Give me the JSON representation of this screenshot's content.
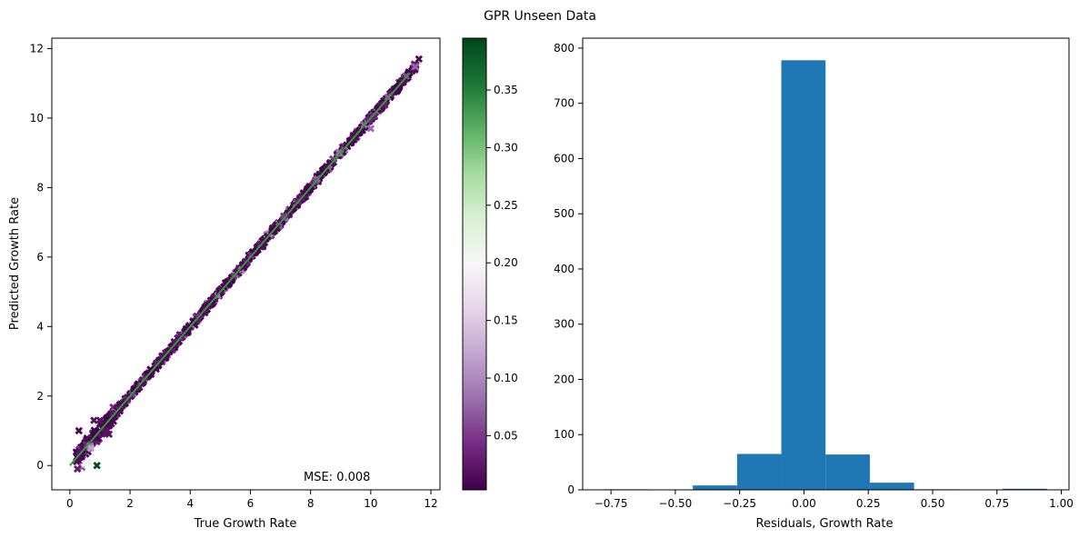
{
  "figure": {
    "suptitle": "GPR Unseen Data"
  },
  "chart_data": [
    {
      "type": "scatter",
      "xlabel": "True Growth Rate",
      "ylabel": "Predicted Growth Rate",
      "xlim": [
        -0.6,
        12.3
      ],
      "ylim": [
        -0.7,
        12.3
      ],
      "xticks": [
        0,
        2,
        4,
        6,
        8,
        10,
        12
      ],
      "yticks": [
        0,
        2,
        4,
        6,
        8,
        10,
        12
      ],
      "annotation": "MSE: 0.008",
      "marker": "X",
      "identity_line": {
        "from": [
          0,
          0
        ],
        "to": [
          11.3,
          11.3
        ],
        "color": "#2ca02c"
      },
      "colorbar": {
        "cmap": "PRGn",
        "range": [
          0.003,
          0.395
        ],
        "ticks": [
          0.05,
          0.1,
          0.15,
          0.2,
          0.25,
          0.3,
          0.35
        ],
        "tick_labels": [
          "0.05",
          "0.10",
          "0.15",
          "0.20",
          "0.25",
          "0.30",
          "0.35"
        ]
      },
      "trend": {
        "x_range": [
          0.2,
          11.5
        ],
        "typical_offset": 0.0,
        "typical_std": 0.04
      },
      "points": [
        {
          "x": 0.3,
          "y": 1.0,
          "c": 0.01
        },
        {
          "x": 0.9,
          "y": 0.0,
          "c": 0.39
        },
        {
          "x": 11.6,
          "y": 11.7,
          "c": 0.01
        },
        {
          "x": 10.0,
          "y": 9.7,
          "c": 0.08
        },
        {
          "x": 0.4,
          "y": -0.05,
          "c": 0.07
        },
        {
          "x": 0.6,
          "y": 0.1,
          "c": 0.18
        },
        {
          "x": 0.5,
          "y": 0.05,
          "c": 0.2
        },
        {
          "x": 0.7,
          "y": 0.5,
          "c": 0.12
        },
        {
          "x": 0.8,
          "y": 1.3,
          "c": 0.02
        },
        {
          "x": 1.0,
          "y": 1.3,
          "c": 0.02
        },
        {
          "x": 1.2,
          "y": 1.0,
          "c": 0.02
        },
        {
          "x": 1.3,
          "y": 0.9,
          "c": 0.02
        },
        {
          "x": 0.3,
          "y": 0.4,
          "c": 0.02
        },
        {
          "x": 0.25,
          "y": -0.1,
          "c": 0.03
        },
        {
          "x": 1.4,
          "y": 1.5,
          "c": 0.02
        }
      ]
    },
    {
      "type": "bar",
      "xlabel": "Residuals, Growth Rate",
      "ylabel": "",
      "xlim": [
        -0.86,
        1.03
      ],
      "ylim": [
        0,
        818
      ],
      "xticks": [
        -0.75,
        -0.5,
        -0.25,
        0.0,
        0.25,
        0.5,
        0.75,
        1.0
      ],
      "xtick_labels": [
        "−0.75",
        "−0.50",
        "−0.25",
        "0.00",
        "0.25",
        "0.50",
        "0.75",
        "1.00"
      ],
      "yticks": [
        0,
        100,
        200,
        300,
        400,
        500,
        600,
        700,
        800
      ],
      "bar_color": "#1f77b4",
      "bins": [
        {
          "x0": -0.776,
          "x1": -0.604,
          "count": 1
        },
        {
          "x0": -0.604,
          "x1": -0.432,
          "count": 0
        },
        {
          "x0": -0.432,
          "x1": -0.26,
          "count": 8
        },
        {
          "x0": -0.26,
          "x1": -0.088,
          "count": 65
        },
        {
          "x0": -0.088,
          "x1": 0.084,
          "count": 778
        },
        {
          "x0": 0.084,
          "x1": 0.256,
          "count": 64
        },
        {
          "x0": 0.256,
          "x1": 0.428,
          "count": 13
        },
        {
          "x0": 0.428,
          "x1": 0.6,
          "count": 1
        },
        {
          "x0": 0.6,
          "x1": 0.772,
          "count": 0
        },
        {
          "x0": 0.772,
          "x1": 0.944,
          "count": 2
        }
      ]
    }
  ]
}
